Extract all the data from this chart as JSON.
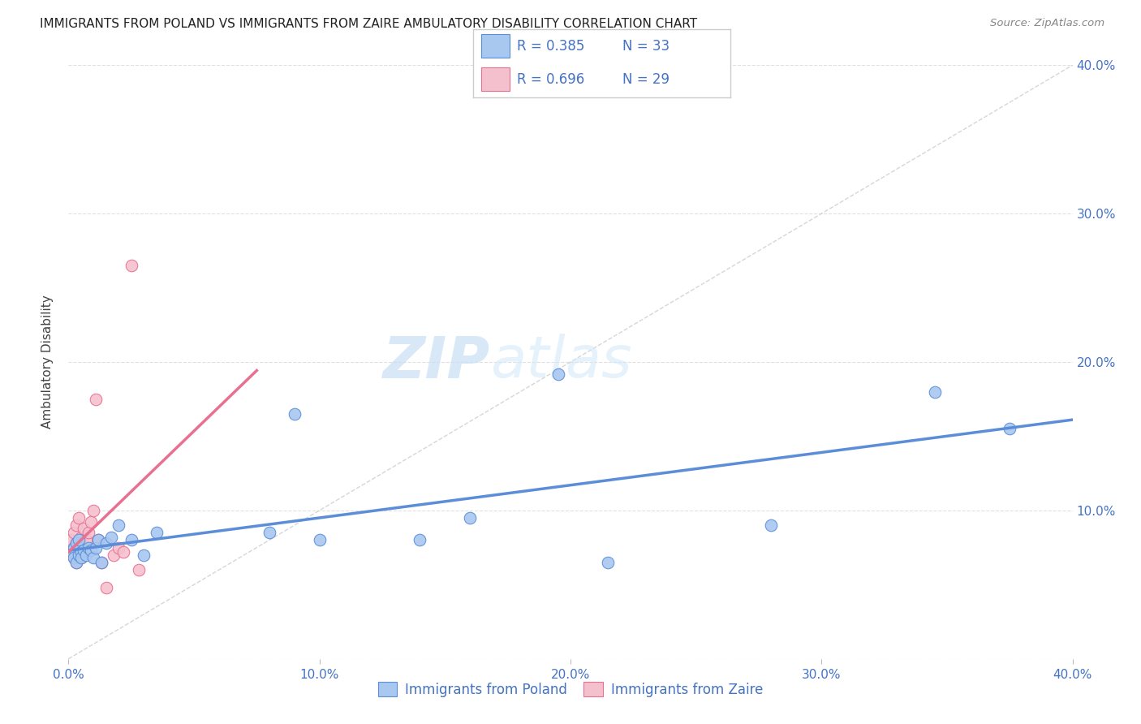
{
  "title": "IMMIGRANTS FROM POLAND VS IMMIGRANTS FROM ZAIRE AMBULATORY DISABILITY CORRELATION CHART",
  "source": "Source: ZipAtlas.com",
  "ylabel": "Ambulatory Disability",
  "xlim": [
    0.0,
    0.4
  ],
  "ylim": [
    0.0,
    0.4
  ],
  "xticks": [
    0.0,
    0.1,
    0.2,
    0.3,
    0.4
  ],
  "yticks": [
    0.0,
    0.1,
    0.2,
    0.3,
    0.4
  ],
  "xtick_labels": [
    "0.0%",
    "10.0%",
    "20.0%",
    "30.0%",
    "40.0%"
  ],
  "right_ytick_labels": [
    "",
    "10.0%",
    "20.0%",
    "30.0%",
    "40.0%"
  ],
  "poland_color": "#a8c8f0",
  "poland_edge": "#5b8dd9",
  "zaire_color": "#f5c0ce",
  "zaire_edge": "#e87090",
  "text_blue": "#4472c4",
  "poland_R": "0.385",
  "poland_N": "33",
  "zaire_R": "0.696",
  "zaire_N": "29",
  "poland_x": [
    0.001,
    0.002,
    0.002,
    0.003,
    0.003,
    0.004,
    0.004,
    0.005,
    0.005,
    0.006,
    0.007,
    0.008,
    0.009,
    0.01,
    0.011,
    0.012,
    0.013,
    0.015,
    0.017,
    0.02,
    0.025,
    0.03,
    0.035,
    0.08,
    0.09,
    0.1,
    0.14,
    0.16,
    0.195,
    0.215,
    0.28,
    0.345,
    0.375
  ],
  "poland_y": [
    0.072,
    0.075,
    0.068,
    0.065,
    0.078,
    0.07,
    0.08,
    0.072,
    0.068,
    0.073,
    0.07,
    0.075,
    0.073,
    0.068,
    0.075,
    0.08,
    0.065,
    0.078,
    0.082,
    0.09,
    0.08,
    0.07,
    0.085,
    0.085,
    0.165,
    0.08,
    0.08,
    0.095,
    0.192,
    0.065,
    0.09,
    0.18,
    0.155
  ],
  "zaire_x": [
    0.001,
    0.001,
    0.002,
    0.002,
    0.002,
    0.003,
    0.003,
    0.003,
    0.004,
    0.004,
    0.004,
    0.005,
    0.005,
    0.006,
    0.006,
    0.007,
    0.007,
    0.008,
    0.009,
    0.01,
    0.011,
    0.012,
    0.013,
    0.015,
    0.018,
    0.02,
    0.022,
    0.025,
    0.028
  ],
  "zaire_y": [
    0.072,
    0.08,
    0.068,
    0.075,
    0.085,
    0.065,
    0.078,
    0.09,
    0.07,
    0.073,
    0.095,
    0.068,
    0.082,
    0.075,
    0.088,
    0.08,
    0.073,
    0.085,
    0.092,
    0.1,
    0.175,
    0.08,
    0.065,
    0.048,
    0.07,
    0.075,
    0.072,
    0.265,
    0.06
  ],
  "zaire_reg_xlim": [
    0.0,
    0.075
  ],
  "poland_reg_xlim": [
    0.0,
    0.4
  ],
  "diag_color": "#cccccc",
  "grid_color": "#e0e0e0",
  "watermark": "ZIPatlas",
  "watermark_zip_color": "#c8dff5",
  "watermark_atlas_color": "#c8dff5"
}
